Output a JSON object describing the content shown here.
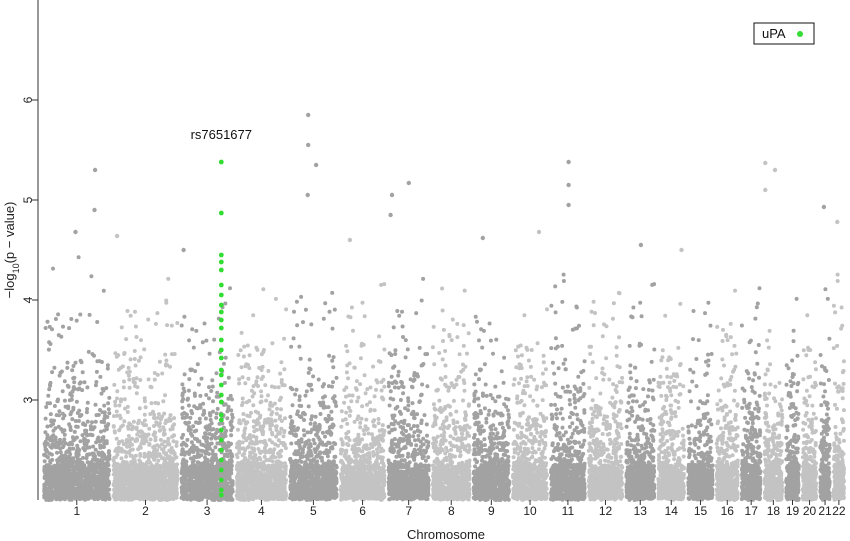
{
  "chart_data": {
    "type": "scatter",
    "title": "",
    "xlabel": "Chromosome",
    "ylabel_prefix": "−log",
    "ylabel_sub": "10",
    "ylabel_suffix": "(p − value)",
    "ylim": [
      2,
      7
    ],
    "yticks": [
      3,
      4,
      5,
      6
    ],
    "grid": false,
    "legend": {
      "position": "top-right",
      "label": "uPA",
      "color": "#33dd33"
    },
    "colors": {
      "odd_chrom": "#a2a2a2",
      "even_chrom": "#c3c3c3",
      "highlight": "#33dd33"
    },
    "chromosomes": [
      {
        "label": "1",
        "size": 249
      },
      {
        "label": "2",
        "size": 243
      },
      {
        "label": "3",
        "size": 198
      },
      {
        "label": "4",
        "size": 191
      },
      {
        "label": "5",
        "size": 181
      },
      {
        "label": "6",
        "size": 171
      },
      {
        "label": "7",
        "size": 159
      },
      {
        "label": "8",
        "size": 146
      },
      {
        "label": "9",
        "size": 141
      },
      {
        "label": "10",
        "size": 136
      },
      {
        "label": "11",
        "size": 135
      },
      {
        "label": "12",
        "size": 134
      },
      {
        "label": "13",
        "size": 115
      },
      {
        "label": "14",
        "size": 107
      },
      {
        "label": "15",
        "size": 102
      },
      {
        "label": "16",
        "size": 90
      },
      {
        "label": "17",
        "size": 81
      },
      {
        "label": "18",
        "size": 78
      },
      {
        "label": "19",
        "size": 59
      },
      {
        "label": "20",
        "size": 63
      },
      {
        "label": "21",
        "size": 48
      },
      {
        "label": "22",
        "size": 51
      }
    ],
    "peaks": [
      {
        "chrom": "1",
        "pos": 190,
        "y": 5.3
      },
      {
        "chrom": "1",
        "pos": 188,
        "y": 4.9
      },
      {
        "chrom": "1",
        "pos": 120,
        "y": 4.68
      },
      {
        "chrom": "2",
        "pos": 20,
        "y": 4.64
      },
      {
        "chrom": "3",
        "pos": 15,
        "y": 4.5
      },
      {
        "chrom": "5",
        "pos": 72,
        "y": 5.85
      },
      {
        "chrom": "5",
        "pos": 72,
        "y": 5.55
      },
      {
        "chrom": "5",
        "pos": 100,
        "y": 5.35
      },
      {
        "chrom": "5",
        "pos": 70,
        "y": 5.05
      },
      {
        "chrom": "6",
        "pos": 40,
        "y": 4.6
      },
      {
        "chrom": "7",
        "pos": 20,
        "y": 5.05
      },
      {
        "chrom": "7",
        "pos": 80,
        "y": 5.17
      },
      {
        "chrom": "7",
        "pos": 15,
        "y": 4.85
      },
      {
        "chrom": "9",
        "pos": 40,
        "y": 4.62
      },
      {
        "chrom": "10",
        "pos": 100,
        "y": 4.68
      },
      {
        "chrom": "11",
        "pos": 70,
        "y": 5.38
      },
      {
        "chrom": "11",
        "pos": 70,
        "y": 5.15
      },
      {
        "chrom": "11",
        "pos": 70,
        "y": 4.95
      },
      {
        "chrom": "13",
        "pos": 60,
        "y": 4.55
      },
      {
        "chrom": "14",
        "pos": 90,
        "y": 4.5
      },
      {
        "chrom": "18",
        "pos": 10,
        "y": 5.37
      },
      {
        "chrom": "18",
        "pos": 45,
        "y": 5.3
      },
      {
        "chrom": "18",
        "pos": 10,
        "y": 5.1
      },
      {
        "chrom": "21",
        "pos": 20,
        "y": 4.93
      },
      {
        "chrom": "22",
        "pos": 20,
        "y": 4.78
      }
    ],
    "highlight_snp": {
      "chrom": "3",
      "pos": 150,
      "label": "rs7651677",
      "values": [
        5.38,
        4.87,
        4.45,
        4.38,
        4.3,
        4.15,
        4.05,
        3.95,
        3.88,
        3.8,
        3.72,
        3.6,
        3.5,
        3.42,
        3.3,
        3.25,
        3.15,
        3.05,
        2.98,
        2.85,
        2.8,
        2.7,
        2.6,
        2.5,
        2.4,
        2.3,
        2.2,
        2.1,
        2.05
      ]
    }
  }
}
